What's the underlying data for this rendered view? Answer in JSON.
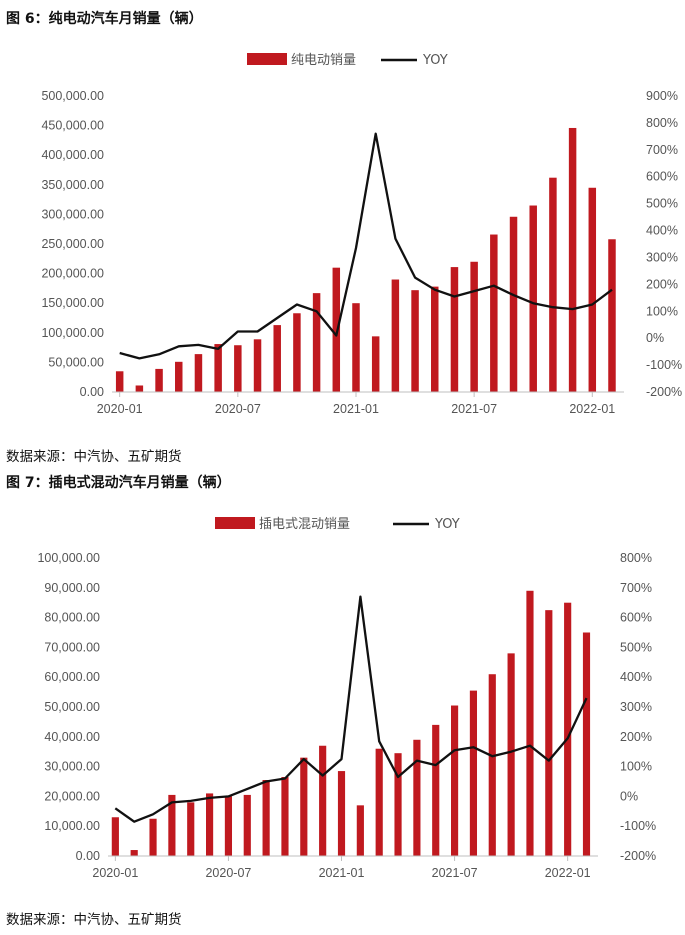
{
  "charts": [
    {
      "figure_title": "图 6：纯电动汽车月销量（辆）",
      "source": "数据来源：中汽协、五矿期货",
      "bar_color": "#c0191f",
      "line_color": "#111111"
    },
    {
      "figure_title": "图 7：插电式混动汽车月销量（辆）",
      "source": "数据来源：中汽协、五矿期货",
      "bar_color": "#c0191f",
      "line_color": "#111111"
    }
  ],
  "chart_data": [
    {
      "type": "bar",
      "title": "图 6：纯电动汽车月销量（辆）",
      "categories": [
        "2020-01",
        "2020-02",
        "2020-03",
        "2020-04",
        "2020-05",
        "2020-06",
        "2020-07",
        "2020-08",
        "2020-09",
        "2020-10",
        "2020-11",
        "2020-12",
        "2021-01",
        "2021-02",
        "2021-03",
        "2021-04",
        "2021-05",
        "2021-06",
        "2021-07",
        "2021-08",
        "2021-09",
        "2021-10",
        "2021-11",
        "2021-12",
        "2022-01",
        "2022-02"
      ],
      "x_tick_labels": [
        "2020-01",
        "2020-07",
        "2021-01",
        "2021-07",
        "2022-01"
      ],
      "x_tick_indices": [
        0,
        6,
        12,
        18,
        24
      ],
      "series": [
        {
          "name": "纯电动销量",
          "axis": "left",
          "type": "bar",
          "values": [
            35000,
            11000,
            39000,
            51000,
            64000,
            81000,
            79000,
            89000,
            113000,
            133000,
            167000,
            210000,
            150000,
            94000,
            190000,
            172000,
            178000,
            211000,
            220000,
            266000,
            296000,
            315000,
            362000,
            446000,
            345000,
            258000
          ]
        },
        {
          "name": "YOY",
          "axis": "right",
          "type": "line",
          "values": [
            -55,
            -75,
            -60,
            -30,
            -25,
            -40,
            25,
            25,
            75,
            125,
            100,
            10,
            335,
            760,
            370,
            225,
            180,
            155,
            175,
            195,
            160,
            130,
            115,
            108,
            125,
            180
          ]
        }
      ],
      "y_left": {
        "min": 0,
        "max": 500000,
        "step": 50000,
        "ticks": [
          "0.00",
          "50,000.00",
          "100,000.00",
          "150,000.00",
          "200,000.00",
          "250,000.00",
          "300,000.00",
          "350,000.00",
          "400,000.00",
          "450,000.00",
          "500,000.00"
        ]
      },
      "y_right": {
        "min": -200,
        "max": 900,
        "step": 100,
        "ticks": [
          "-200%",
          "-100%",
          "0%",
          "100%",
          "200%",
          "300%",
          "400%",
          "500%",
          "600%",
          "700%",
          "800%",
          "900%"
        ]
      },
      "legend": {
        "position": "top"
      }
    },
    {
      "type": "bar",
      "title": "图 7：插电式混动汽车月销量（辆）",
      "categories": [
        "2020-01",
        "2020-02",
        "2020-03",
        "2020-04",
        "2020-05",
        "2020-06",
        "2020-07",
        "2020-08",
        "2020-09",
        "2020-10",
        "2020-11",
        "2020-12",
        "2021-01",
        "2021-02",
        "2021-03",
        "2021-04",
        "2021-05",
        "2021-06",
        "2021-07",
        "2021-08",
        "2021-09",
        "2021-10",
        "2021-11",
        "2021-12",
        "2022-01",
        "2022-02"
      ],
      "x_tick_labels": [
        "2020-01",
        "2020-07",
        "2021-01",
        "2021-07",
        "2022-01"
      ],
      "x_tick_indices": [
        0,
        6,
        12,
        18,
        24
      ],
      "series": [
        {
          "name": "插电式混动销量",
          "axis": "left",
          "type": "bar",
          "values": [
            13000,
            2000,
            12500,
            20500,
            18000,
            21000,
            20000,
            20500,
            25500,
            26500,
            33000,
            37000,
            28500,
            17000,
            36000,
            34500,
            39000,
            44000,
            50500,
            55500,
            61000,
            68000,
            89000,
            82500,
            85000,
            75000
          ]
        },
        {
          "name": "YOY",
          "axis": "right",
          "type": "line",
          "values": [
            -40,
            -85,
            -60,
            -20,
            -15,
            -5,
            0,
            25,
            50,
            60,
            125,
            70,
            125,
            670,
            185,
            65,
            120,
            105,
            155,
            165,
            135,
            150,
            170,
            120,
            195,
            330
          ]
        }
      ],
      "y_left": {
        "min": 0,
        "max": 100000,
        "step": 10000,
        "ticks": [
          "0.00",
          "10,000.00",
          "20,000.00",
          "30,000.00",
          "40,000.00",
          "50,000.00",
          "60,000.00",
          "70,000.00",
          "80,000.00",
          "90,000.00",
          "100,000.00"
        ]
      },
      "y_right": {
        "min": -200,
        "max": 800,
        "step": 100,
        "ticks": [
          "-200%",
          "-100%",
          "0%",
          "100%",
          "200%",
          "300%",
          "400%",
          "500%",
          "600%",
          "700%",
          "800%"
        ]
      },
      "legend": {
        "position": "top"
      }
    }
  ]
}
